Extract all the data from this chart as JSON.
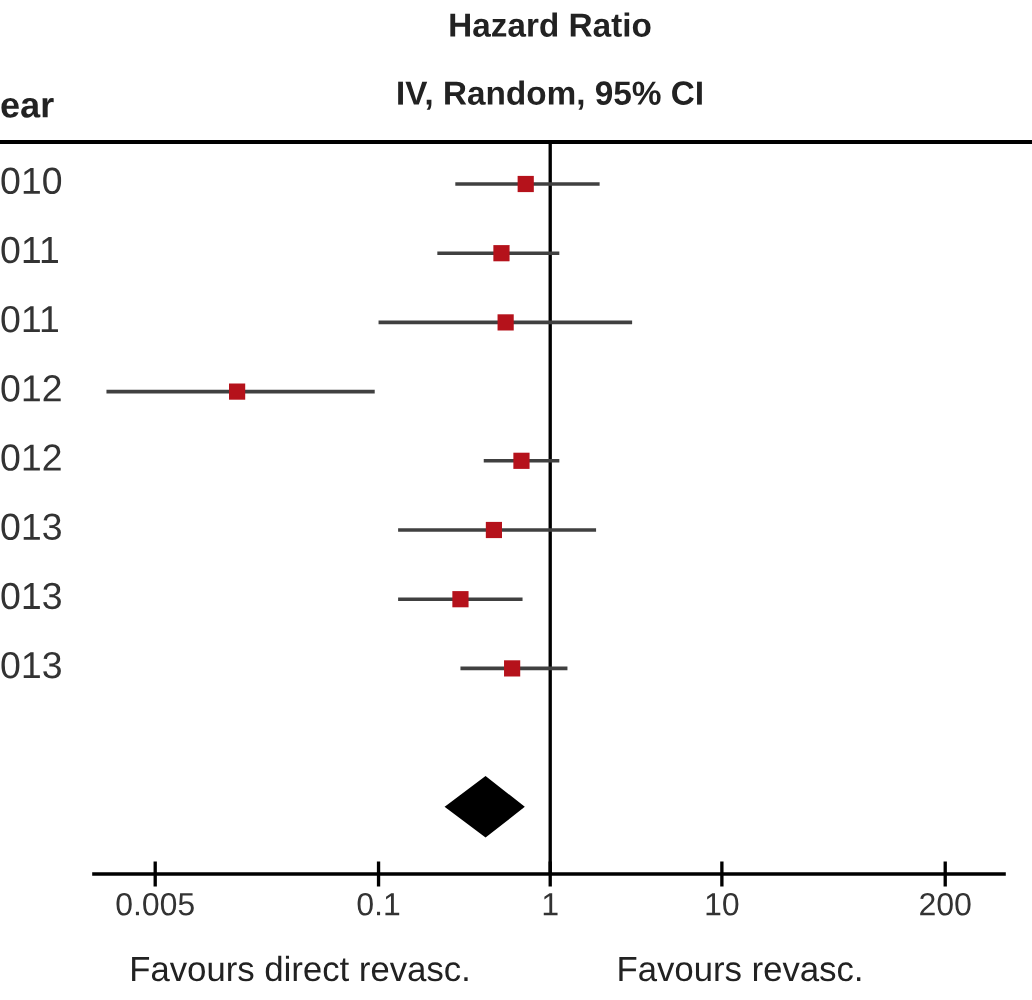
{
  "chart_data": {
    "type": "scatter",
    "orientation": "horizontal",
    "title": "Hazard Ratio",
    "subtitle": "IV, Random, 95% CI",
    "categories": [
      "010",
      "011",
      "011",
      "012",
      "012",
      "013",
      "013",
      "013",
      null,
      null
    ],
    "series": [
      {
        "color": "#b5121b",
        "marker": "square",
        "values": [
          0.72,
          0.52,
          0.55,
          0.015,
          0.68,
          0.47,
          0.3,
          0.6,
          null,
          null
        ],
        "errors": [
          [
            0.28,
            1.94
          ],
          [
            0.22,
            1.13
          ],
          [
            0.1,
            3.0
          ],
          [
            0.0026,
            0.095
          ],
          [
            0.41,
            1.13
          ],
          [
            0.13,
            1.85
          ],
          [
            0.13,
            0.69
          ],
          [
            0.3,
            1.26
          ],
          null,
          null
        ]
      },
      {
        "color": "#000000",
        "marker": "diamond",
        "values": [
          null,
          null,
          null,
          null,
          null,
          null,
          null,
          null,
          null,
          0.42
        ],
        "errors": [
          null,
          null,
          null,
          null,
          null,
          null,
          null,
          null,
          null,
          [
            0.25,
            0.69
          ]
        ]
      }
    ],
    "log": "x",
    "xlim": [
      0.0022,
      440
    ],
    "xticks": [
      0.005,
      0.1,
      1,
      10,
      200
    ],
    "ref_lines": [
      {
        "axis": "x",
        "value": 1,
        "color": "#000000"
      }
    ],
    "grid": false,
    "legend": false,
    "annotations": [
      "ear",
      "Favours direct revasc.",
      "Favours revasc."
    ]
  }
}
